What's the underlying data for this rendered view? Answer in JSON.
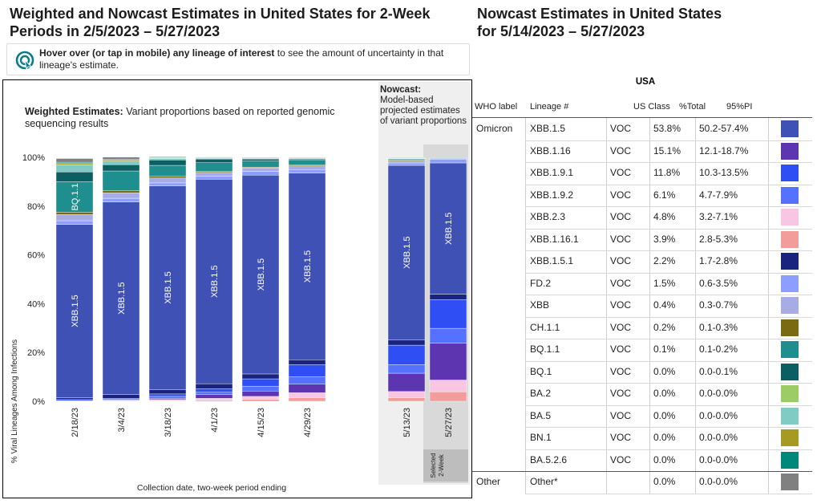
{
  "left_title": "Weighted and Nowcast Estimates in United States for 2-Week Periods in 2/5/2023 – 5/27/2023",
  "left_title_line1": "Weighted and Nowcast Estimates in United States for 2-Week",
  "left_title_line2": "Periods in 2/5/2023 – 5/27/2023",
  "right_title_line1": "Nowcast Estimates in United States",
  "right_title_line2": "for 5/14/2023 – 5/27/2023",
  "hint": {
    "bold": "Hover over (or tap in mobile) any lineage of interest",
    "rest": " to see the amount of uncertainty in that lineage's estimate."
  },
  "weighted_title_bold": "Weighted Estimates:",
  "weighted_title_rest": " Variant proportions based on reported genomic sequencing results",
  "nowcast_title_bold": "Nowcast:",
  "nowcast_title_rest": "Model-based projected estimates of variant proportions",
  "selected_label": "Selected 2-Week",
  "y_axis_title": "% Viral Lineages Among Infections",
  "x_axis_title": "Collection date, two-week period ending",
  "table": {
    "region": "USA",
    "headers": [
      "WHO label",
      "Lineage #",
      "US Class",
      "%Total",
      "95%PI"
    ],
    "rows": [
      {
        "who": "Omicron",
        "lineage": "XBB.1.5",
        "cls": "VOC",
        "total": "53.8%",
        "pi": "50.2-57.4%",
        "color": "#3F51B5"
      },
      {
        "who": "",
        "lineage": "XBB.1.16",
        "cls": "VOC",
        "total": "15.1%",
        "pi": "12.1-18.7%",
        "color": "#5E35B1"
      },
      {
        "who": "",
        "lineage": "XBB.1.9.1",
        "cls": "VOC",
        "total": "11.8%",
        "pi": "10.3-13.5%",
        "color": "#2F4FF5"
      },
      {
        "who": "",
        "lineage": "XBB.1.9.2",
        "cls": "VOC",
        "total": "6.1%",
        "pi": "4.7-7.9%",
        "color": "#5472FF"
      },
      {
        "who": "",
        "lineage": "XBB.2.3",
        "cls": "VOC",
        "total": "4.8%",
        "pi": "3.2-7.1%",
        "color": "#F8C6E2"
      },
      {
        "who": "",
        "lineage": "XBB.1.16.1",
        "cls": "VOC",
        "total": "3.9%",
        "pi": "2.8-5.3%",
        "color": "#F39C9C"
      },
      {
        "who": "",
        "lineage": "XBB.1.5.1",
        "cls": "VOC",
        "total": "2.2%",
        "pi": "1.7-2.8%",
        "color": "#1A237E"
      },
      {
        "who": "",
        "lineage": "FD.2",
        "cls": "VOC",
        "total": "1.5%",
        "pi": "0.6-3.5%",
        "color": "#8C9EFF"
      },
      {
        "who": "",
        "lineage": "XBB",
        "cls": "VOC",
        "total": "0.4%",
        "pi": "0.3-0.7%",
        "color": "#A7ADE4"
      },
      {
        "who": "",
        "lineage": "CH.1.1",
        "cls": "VOC",
        "total": "0.2%",
        "pi": "0.1-0.3%",
        "color": "#7A6B12"
      },
      {
        "who": "",
        "lineage": "BQ.1.1",
        "cls": "VOC",
        "total": "0.1%",
        "pi": "0.1-0.2%",
        "color": "#1E8E8E"
      },
      {
        "who": "",
        "lineage": "BQ.1",
        "cls": "VOC",
        "total": "0.0%",
        "pi": "0.0-0.1%",
        "color": "#0B5E62"
      },
      {
        "who": "",
        "lineage": "BA.2",
        "cls": "VOC",
        "total": "0.0%",
        "pi": "0.0-0.0%",
        "color": "#9CCC65"
      },
      {
        "who": "",
        "lineage": "BA.5",
        "cls": "VOC",
        "total": "0.0%",
        "pi": "0.0-0.0%",
        "color": "#80CBC4"
      },
      {
        "who": "",
        "lineage": "BN.1",
        "cls": "VOC",
        "total": "0.0%",
        "pi": "0.0-0.0%",
        "color": "#A79A22"
      },
      {
        "who": "",
        "lineage": "BA.5.2.6",
        "cls": "VOC",
        "total": "0.0%",
        "pi": "0.0-0.0%",
        "color": "#00897B"
      },
      {
        "who": "Other",
        "lineage": "Other*",
        "cls": "",
        "total": "0.0%",
        "pi": "0.0-0.0%",
        "color": "#808080"
      }
    ]
  },
  "chart_data": {
    "type": "bar",
    "stacked": true,
    "y_ticks": [
      "0%",
      "20%",
      "40%",
      "60%",
      "80%",
      "100%"
    ],
    "ylim": [
      0,
      100
    ],
    "categories": [
      "2/18/23",
      "3/4/23",
      "3/18/23",
      "4/1/23",
      "4/15/23",
      "4/29/23",
      "5/13/23",
      "5/27/23"
    ],
    "nowcast_categories": [
      "5/13/23",
      "5/27/23"
    ],
    "selected_category": "5/27/23",
    "bar_labels": {
      "XBB.1.5": "XBB.1.5",
      "BQ.1.1": "BQ.1.1"
    },
    "series": [
      {
        "lineage": "XBB.1.16.1",
        "color": "#F39C9C",
        "values": [
          0,
          0,
          0.2,
          0.4,
          0.8,
          1.5,
          1.5,
          3.9
        ]
      },
      {
        "lineage": "XBB.2.3",
        "color": "#F8C6E2",
        "values": [
          0.2,
          0.3,
          0.5,
          0.8,
          1.2,
          2.0,
          2.5,
          4.8
        ]
      },
      {
        "lineage": "XBB.1.16",
        "color": "#5E35B1",
        "values": [
          0,
          0.2,
          0.5,
          1.5,
          2.2,
          3.5,
          7.5,
          15.1
        ]
      },
      {
        "lineage": "XBB.1.9.2",
        "color": "#5472FF",
        "values": [
          0,
          0.2,
          0.8,
          1.0,
          2.0,
          3.0,
          3.5,
          6.1
        ]
      },
      {
        "lineage": "XBB.1.9.1",
        "color": "#2F4FF5",
        "values": [
          0.5,
          0.5,
          1.0,
          1.5,
          3.0,
          5.0,
          8.0,
          11.8
        ]
      },
      {
        "lineage": "XBB.1.5.1",
        "color": "#1A237E",
        "values": [
          0.8,
          1.5,
          1.8,
          2.0,
          2.0,
          2.0,
          2.2,
          2.2
        ]
      },
      {
        "lineage": "XBB.1.5",
        "color": "#3F51B5",
        "values": [
          71.0,
          79.0,
          83.5,
          83.8,
          81.5,
          76.5,
          71.5,
          53.8
        ]
      },
      {
        "lineage": "FD.2",
        "color": "#8C9EFF",
        "values": [
          1.5,
          1.5,
          1.2,
          1.3,
          1.5,
          1.5,
          1.0,
          1.5
        ]
      },
      {
        "lineage": "XBB",
        "color": "#A7ADE4",
        "values": [
          2.5,
          2.2,
          2.0,
          1.5,
          1.5,
          1.5,
          0.8,
          0.4
        ]
      },
      {
        "lineage": "CH.1.1",
        "color": "#7A6B12",
        "values": [
          1.0,
          1.0,
          0.7,
          0.5,
          0.3,
          0.3,
          0.3,
          0.2
        ]
      },
      {
        "lineage": "BQ.1.1",
        "color": "#1E8E8E",
        "values": [
          12.5,
          8.0,
          4.5,
          3.5,
          2.5,
          2.0,
          0.5,
          0.1
        ]
      },
      {
        "lineage": "BQ.1",
        "color": "#0B5E62",
        "values": [
          4.0,
          2.6,
          2.2,
          1.5,
          0.8,
          0.5,
          0.2,
          0.0
        ]
      },
      {
        "lineage": "BA.5",
        "color": "#80CBC4",
        "values": [
          3.0,
          1.5,
          0.6,
          0.4,
          0.3,
          0.2,
          0.1,
          0.0
        ]
      },
      {
        "lineage": "BN.1",
        "color": "#A79A22",
        "values": [
          0.5,
          0.3,
          0.2,
          0.1,
          0.1,
          0.1,
          0.1,
          0.0
        ]
      },
      {
        "lineage": "BA.5.2.6",
        "color": "#00897B",
        "values": [
          0.5,
          0.3,
          0.2,
          0.1,
          0.1,
          0.1,
          0.1,
          0.0
        ]
      },
      {
        "lineage": "Other*",
        "color": "#808080",
        "values": [
          1.5,
          1.0,
          0.3,
          0.2,
          0.2,
          0.2,
          0.1,
          0.0
        ]
      }
    ]
  }
}
